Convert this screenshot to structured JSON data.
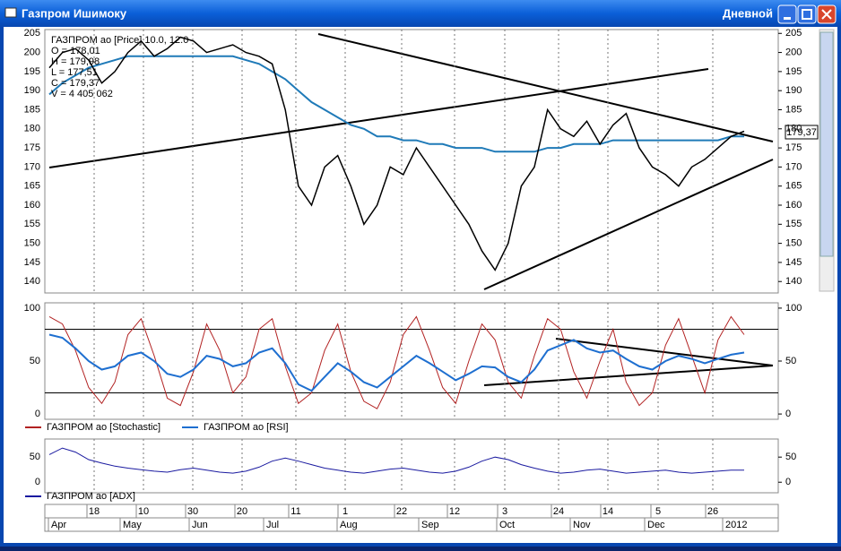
{
  "window": {
    "title": "Газпром Ишимоку",
    "timeframe": "Дневной"
  },
  "price_panel": {
    "info": [
      "ГАЗПРОМ ао [Price] 10.0, 12.0",
      "O = 178,01",
      "H = 179,98",
      "L = 177,51",
      "C = 179,37",
      "V = 4 405 062"
    ],
    "last_label": "179,37",
    "ylim": [
      137,
      206
    ],
    "yticks": [
      140,
      145,
      150,
      155,
      160,
      165,
      170,
      175,
      180,
      185,
      190,
      195,
      200,
      205
    ],
    "close": [
      196,
      200,
      201,
      198,
      192,
      195,
      200,
      203,
      199,
      201,
      204,
      203,
      200,
      201,
      202,
      200,
      199,
      197,
      185,
      165,
      160,
      170,
      173,
      165,
      155,
      160,
      170,
      168,
      175,
      170,
      165,
      160,
      155,
      148,
      143,
      150,
      165,
      170,
      185,
      180,
      178,
      182,
      176,
      181,
      184,
      175,
      170,
      168,
      165,
      170,
      172,
      175,
      178,
      179.37
    ],
    "ma": [
      189,
      192,
      194,
      196,
      197,
      198,
      199,
      199,
      199,
      199,
      199,
      199,
      199,
      199,
      199,
      198,
      197,
      195,
      193,
      190,
      187,
      185,
      183,
      181,
      180,
      178,
      178,
      177,
      177,
      176,
      176,
      175,
      175,
      175,
      174,
      174,
      174,
      174,
      175,
      175,
      176,
      176,
      176,
      177,
      177,
      177,
      177,
      177,
      177,
      177,
      177,
      177,
      178,
      178
    ]
  },
  "oscillator_panel": {
    "ylim": [
      -5,
      105
    ],
    "yticks": [
      0,
      50,
      100
    ],
    "levels": [
      20,
      80
    ],
    "legend": [
      {
        "name": "ГАЗПРОМ ао [Stochastic]",
        "color": "#b22222"
      },
      {
        "name": "ГАЗПРОМ ао [RSI]",
        "color": "#1e6fd0"
      }
    ],
    "stochastic": [
      92,
      85,
      60,
      25,
      10,
      30,
      75,
      90,
      55,
      15,
      8,
      40,
      85,
      60,
      20,
      35,
      80,
      90,
      45,
      10,
      20,
      60,
      85,
      40,
      12,
      5,
      30,
      75,
      92,
      60,
      25,
      10,
      50,
      85,
      70,
      30,
      15,
      55,
      90,
      80,
      40,
      15,
      50,
      80,
      30,
      8,
      20,
      65,
      90,
      55,
      20,
      70,
      92,
      75
    ],
    "rsi": [
      75,
      72,
      62,
      50,
      42,
      45,
      55,
      58,
      50,
      38,
      35,
      42,
      55,
      52,
      45,
      48,
      58,
      62,
      48,
      28,
      22,
      35,
      48,
      40,
      30,
      25,
      35,
      45,
      55,
      48,
      40,
      32,
      38,
      45,
      44,
      35,
      30,
      42,
      60,
      65,
      70,
      62,
      58,
      60,
      52,
      45,
      42,
      50,
      55,
      52,
      48,
      52,
      56,
      58
    ]
  },
  "adx_panel": {
    "ylim": [
      -21,
      86
    ],
    "yticks": [
      0,
      50
    ],
    "legend": "ГАЗПРОМ ао [ADX]",
    "adx": [
      55,
      68,
      60,
      45,
      38,
      32,
      28,
      25,
      22,
      20,
      25,
      28,
      24,
      20,
      18,
      22,
      30,
      42,
      48,
      42,
      35,
      28,
      24,
      20,
      18,
      22,
      26,
      28,
      24,
      20,
      18,
      22,
      30,
      42,
      50,
      45,
      35,
      28,
      22,
      18,
      20,
      24,
      26,
      22,
      18,
      20,
      22,
      24,
      20,
      18,
      20,
      22,
      24,
      24
    ]
  },
  "date_axis": {
    "days": [
      "18",
      "10",
      "30",
      "20",
      "11",
      "1",
      "22",
      "12",
      "3",
      "24",
      "14",
      "5",
      "26"
    ],
    "months": [
      "Apr",
      "May",
      "Jun",
      "Jul",
      "Aug",
      "Sep",
      "Oct",
      "Nov",
      "Dec",
      "2012"
    ]
  }
}
